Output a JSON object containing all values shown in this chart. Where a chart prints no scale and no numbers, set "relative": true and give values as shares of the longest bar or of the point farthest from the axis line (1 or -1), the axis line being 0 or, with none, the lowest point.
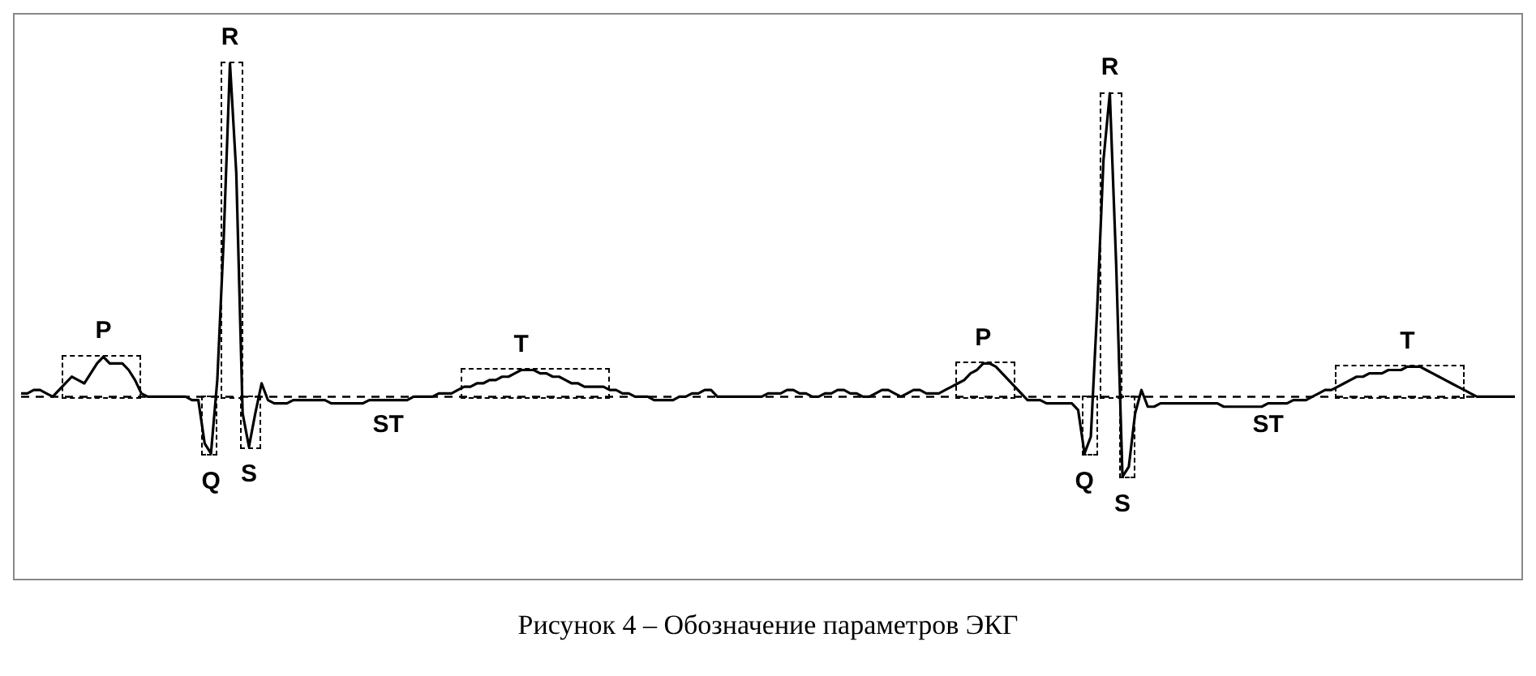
{
  "chart_data": {
    "type": "line",
    "relative": true,
    "marker": "none",
    "line_style": "solid",
    "categories": [
      null,
      null,
      null,
      null,
      null,
      null,
      null,
      null,
      null,
      null,
      null,
      null,
      null,
      null,
      null,
      null,
      null,
      null,
      null,
      null,
      null,
      null,
      null,
      null,
      null,
      null,
      null,
      null,
      null,
      null,
      null,
      null,
      null,
      null,
      null,
      null,
      null,
      null,
      null,
      null,
      null,
      null,
      null,
      null,
      null,
      null,
      null,
      null,
      null,
      null,
      null,
      null,
      null,
      null,
      null,
      null,
      null,
      null,
      null,
      null,
      null,
      null,
      null,
      null,
      null,
      null,
      null,
      null,
      null,
      null,
      null,
      null,
      null,
      null,
      null,
      null,
      null,
      null,
      null,
      null,
      null,
      null,
      null,
      null,
      null,
      null,
      null,
      null,
      null,
      null,
      null,
      null,
      null,
      null,
      null,
      null,
      null,
      null,
      null,
      null,
      null,
      null,
      null,
      null,
      null,
      null,
      null,
      null,
      null,
      null,
      null,
      null,
      null,
      null,
      null,
      null,
      null,
      null,
      null,
      null,
      null,
      null,
      null,
      null,
      null,
      null,
      null,
      null,
      null,
      null,
      null,
      null,
      null,
      null,
      null,
      null,
      null,
      null,
      null,
      null,
      null,
      null,
      null,
      null,
      null,
      null,
      null,
      null,
      null,
      null,
      null,
      null,
      null,
      null,
      null,
      null,
      null,
      null,
      null,
      null,
      null,
      null,
      null,
      null,
      null,
      null,
      null,
      null,
      null,
      null,
      null,
      null,
      null,
      null,
      null,
      null,
      null,
      null,
      null,
      null,
      null,
      null,
      null,
      null,
      null,
      null,
      null,
      null,
      null,
      null,
      null,
      null,
      null,
      null,
      null,
      null,
      null,
      null,
      null,
      null,
      null,
      null,
      null,
      null,
      null,
      null,
      null,
      null,
      null,
      null,
      null,
      null,
      null,
      null,
      null,
      null,
      null,
      null,
      null,
      null,
      null,
      null,
      null,
      null,
      null,
      null,
      null,
      null,
      null,
      null,
      null,
      null,
      null,
      null,
      null,
      null,
      null
    ],
    "series": [
      {
        "color": "#000000",
        "values": [
          0.01,
          0.01,
          0.02,
          0.02,
          0.01,
          0,
          0.02,
          0.04,
          0.06,
          0.05,
          0.04,
          0.07,
          0.1,
          0.12,
          0.1,
          0.1,
          0.1,
          0.08,
          0.05,
          0.01,
          0,
          0,
          0,
          0,
          0,
          0,
          0,
          -0.01,
          -0.01,
          -0.14,
          -0.17,
          0.05,
          0.47,
          1,
          0.67,
          -0.05,
          -0.15,
          -0.05,
          0.04,
          -0.01,
          -0.02,
          -0.02,
          -0.02,
          -0.01,
          -0.01,
          -0.01,
          -0.01,
          -0.01,
          -0.01,
          -0.02,
          -0.02,
          -0.02,
          -0.02,
          -0.02,
          -0.02,
          -0.01,
          -0.01,
          -0.01,
          -0.01,
          -0.01,
          -0.01,
          -0.01,
          0,
          0,
          0,
          0,
          0.01,
          0.01,
          0.01,
          0.02,
          0.03,
          0.03,
          0.04,
          0.04,
          0.05,
          0.05,
          0.06,
          0.06,
          0.07,
          0.08,
          0.08,
          0.08,
          0.07,
          0.07,
          0.06,
          0.06,
          0.05,
          0.04,
          0.04,
          0.03,
          0.03,
          0.03,
          0.03,
          0.02,
          0.02,
          0.01,
          0.01,
          0,
          0,
          0,
          -0.01,
          -0.01,
          -0.01,
          -0.01,
          0,
          0,
          0.01,
          0.01,
          0.02,
          0.02,
          0,
          0,
          0,
          0,
          0,
          0,
          0,
          0,
          0.01,
          0.01,
          0.01,
          0.02,
          0.02,
          0.01,
          0.01,
          0,
          0,
          0.01,
          0.01,
          0.02,
          0.02,
          0.01,
          0.01,
          0,
          0,
          0.01,
          0.02,
          0.02,
          0.01,
          0,
          0.01,
          0.02,
          0.02,
          0.01,
          0.01,
          0.01,
          0.02,
          0.03,
          0.04,
          0.05,
          0.07,
          0.08,
          0.1,
          0.1,
          0.09,
          0.07,
          0.05,
          0.03,
          0.01,
          -0.01,
          -0.01,
          -0.01,
          -0.02,
          -0.02,
          -0.02,
          -0.02,
          -0.02,
          -0.04,
          -0.17,
          -0.12,
          0.26,
          0.71,
          0.91,
          0.4,
          -0.24,
          -0.21,
          -0.05,
          0.02,
          -0.03,
          -0.03,
          -0.02,
          -0.02,
          -0.02,
          -0.02,
          -0.02,
          -0.02,
          -0.02,
          -0.02,
          -0.02,
          -0.02,
          -0.03,
          -0.03,
          -0.03,
          -0.03,
          -0.03,
          -0.03,
          -0.03,
          -0.02,
          -0.02,
          -0.02,
          -0.02,
          -0.01,
          -0.01,
          -0.01,
          0,
          0.01,
          0.02,
          0.02,
          0.03,
          0.04,
          0.05,
          0.06,
          0.06,
          0.07,
          0.07,
          0.07,
          0.08,
          0.08,
          0.08,
          0.09,
          0.09,
          0.09,
          0.08,
          0.07,
          0.06,
          0.05,
          0.04,
          0.03,
          0.02,
          0.01,
          0,
          0,
          0,
          0,
          0,
          0,
          0
        ]
      }
    ],
    "ref_lines": [
      {
        "axis": "y",
        "value": 0,
        "color": "#000000",
        "line_style": "dashed"
      }
    ],
    "annotations": [
      {
        "text": "P",
        "y": 0.12
      },
      {
        "text": "Q",
        "y": -0.17
      },
      {
        "text": "R",
        "y": 1
      },
      {
        "text": "S",
        "y": -0.15
      },
      "ST",
      {
        "text": "T",
        "y": 0.08
      },
      {
        "text": "P",
        "y": 0.1
      },
      {
        "text": "Q",
        "y": -0.17
      },
      {
        "text": "R",
        "y": 0.91
      },
      {
        "text": "S",
        "y": -0.24
      },
      "ST",
      {
        "text": "T",
        "y": 0.09
      },
      "Рисунок 4 – Обозначение параметров ЭКГ"
    ]
  }
}
